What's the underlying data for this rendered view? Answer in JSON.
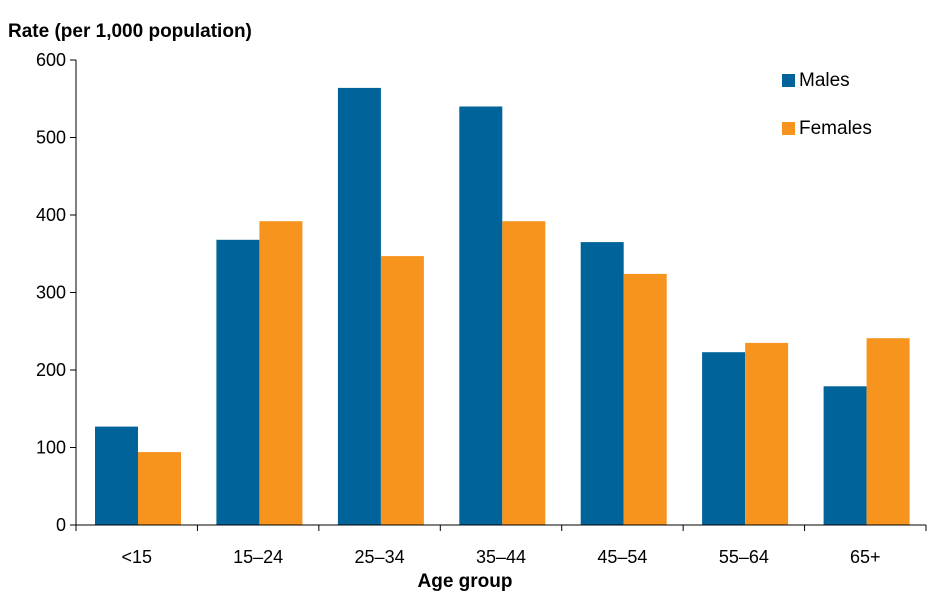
{
  "chart_data": {
    "type": "bar",
    "title": "",
    "ylabel": "Rate (per 1,000 population)",
    "xlabel": "Age group",
    "ylim": [
      0,
      600
    ],
    "yticks": [
      "0",
      "100",
      "200",
      "300",
      "400",
      "500",
      "600"
    ],
    "categories": [
      "<15",
      "15–24",
      "25–34",
      "35–44",
      "45–54",
      "55–64",
      "65+"
    ],
    "series": [
      {
        "name": "Males",
        "color": "#006399",
        "values": [
          127,
          368,
          564,
          540,
          365,
          223,
          179
        ]
      },
      {
        "name": "Females",
        "color": "#F7941D",
        "values": [
          94,
          392,
          347,
          392,
          324,
          235,
          241
        ]
      }
    ],
    "grid": false,
    "legend": "top-right"
  }
}
